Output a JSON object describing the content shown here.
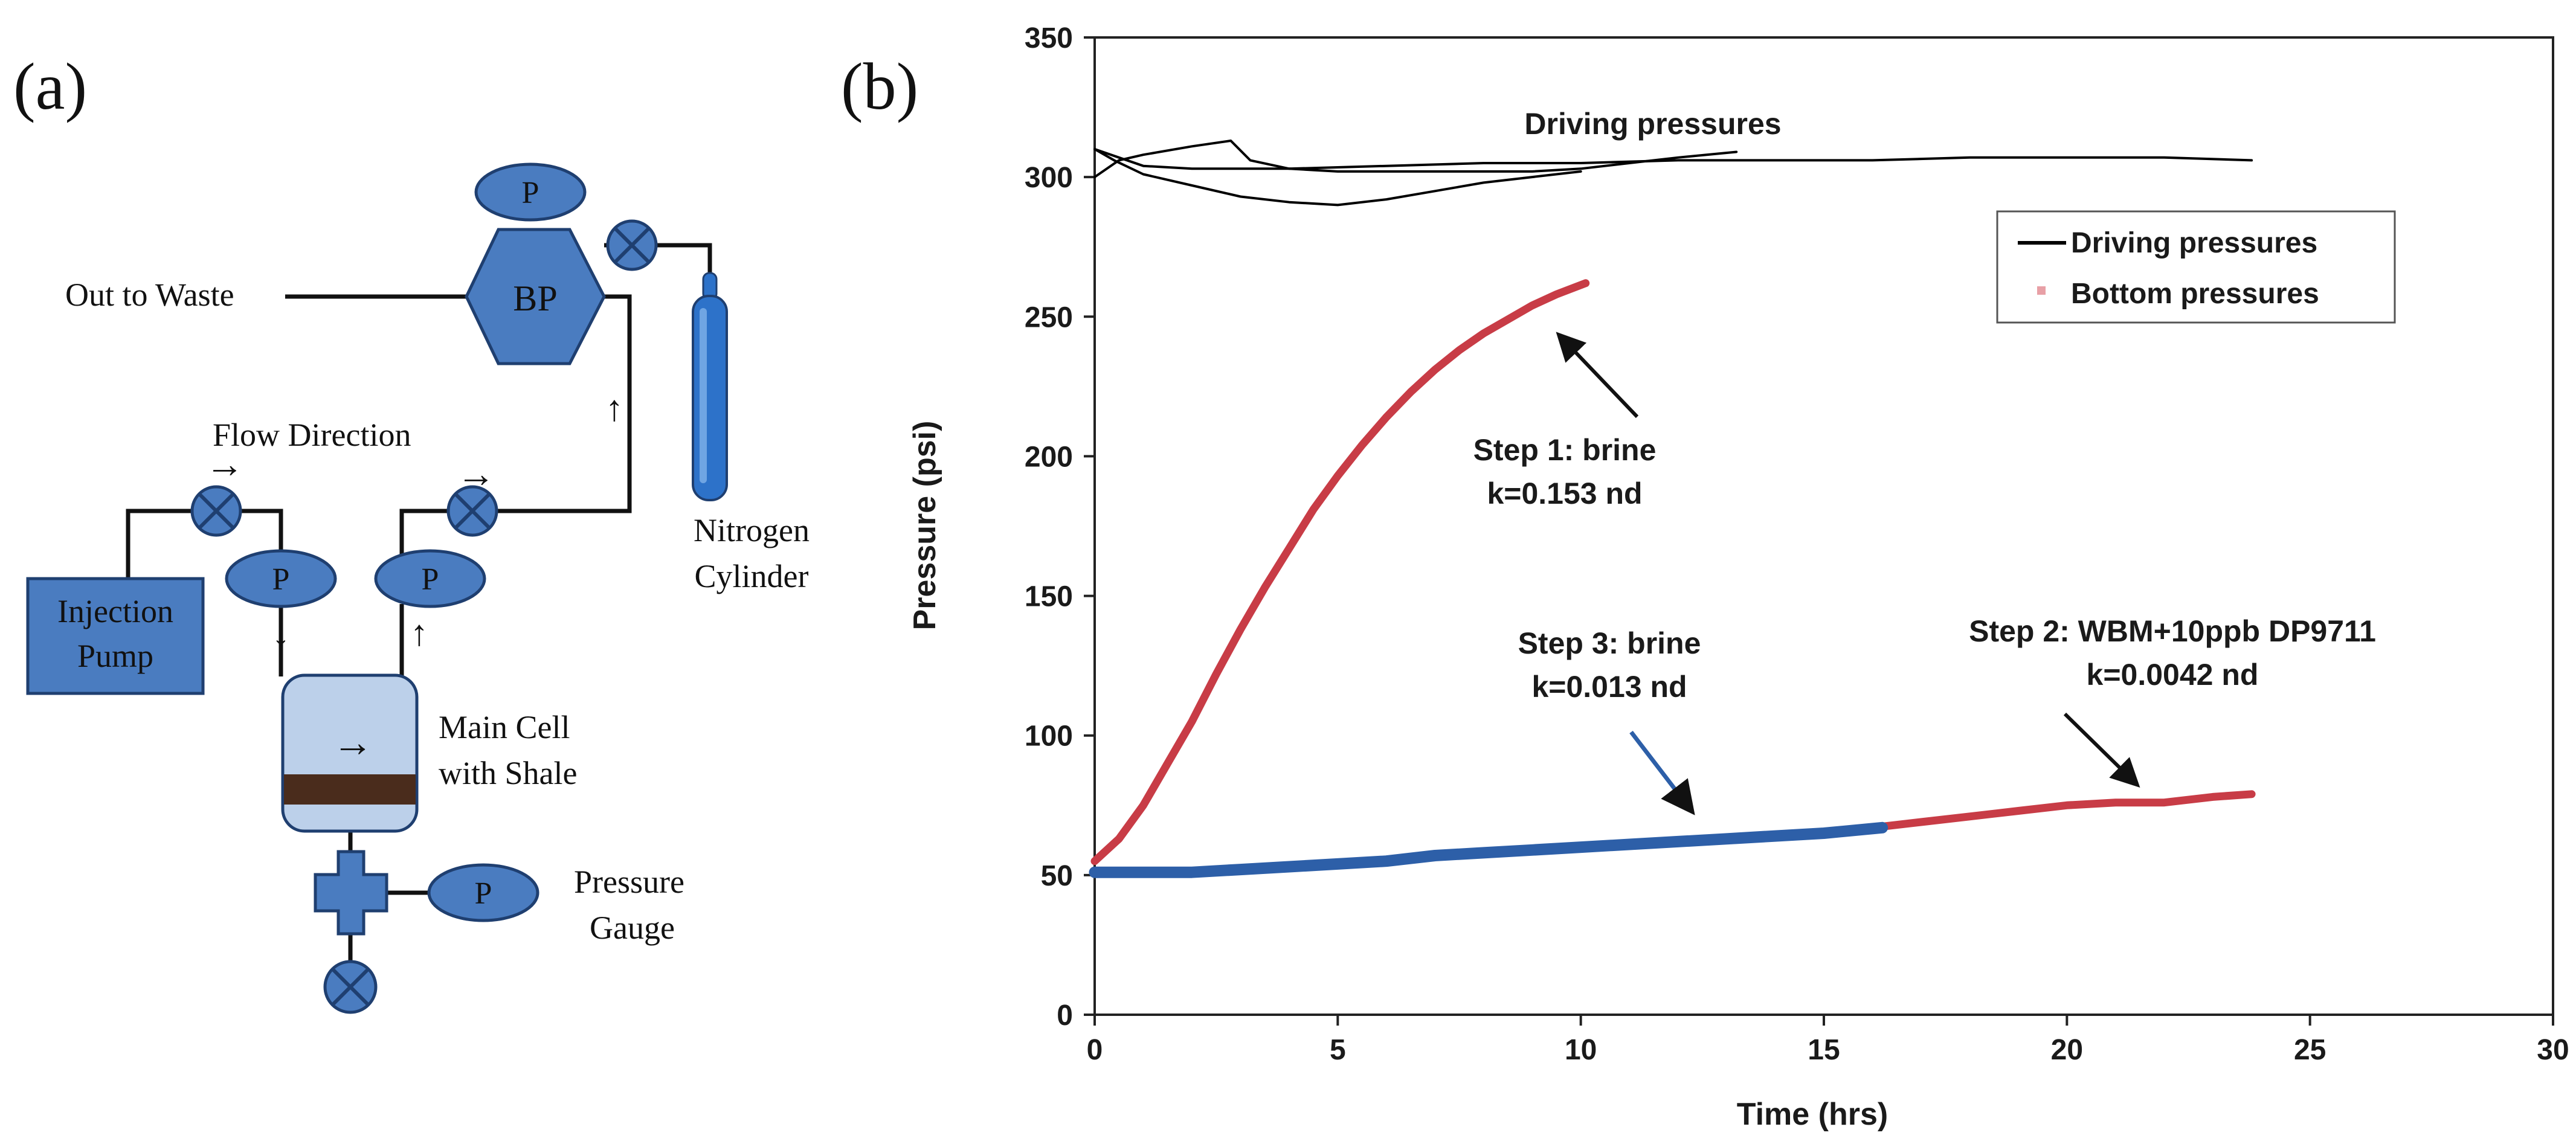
{
  "panel_a": {
    "label": "(a)",
    "out_to_waste": "Out to Waste",
    "back_pressure": "BP",
    "gauge_symbol": "P",
    "flow_direction": "Flow Direction",
    "nitrogen_line1": "Nitrogen",
    "nitrogen_line2": "Cylinder",
    "pump_line1": "Injection",
    "pump_line2": "Pump",
    "cell_line1": "Main Cell",
    "cell_line2": "with Shale",
    "gauge_line1": "Pressure",
    "gauge_line2": "Gauge",
    "arrow_right": "→",
    "arrow_down": "↓",
    "arrow_up": "↑"
  },
  "panel_b_label": "(b)",
  "colors": {
    "driving": "#000000",
    "bottom": "#c83c46",
    "step3": "#2d5fa8",
    "component": "#4a7cc0"
  },
  "chart_data": {
    "type": "line",
    "title": "",
    "xlabel": "Time (hrs)",
    "ylabel": "Pressure (psi)",
    "xlim": [
      0,
      30
    ],
    "ylim": [
      0,
      350
    ],
    "xticks": [
      "0",
      "5",
      "10",
      "15",
      "20",
      "25",
      "30"
    ],
    "yticks": [
      "0",
      "50",
      "100",
      "150",
      "200",
      "250",
      "300",
      "350"
    ],
    "legend": [
      {
        "name": "Driving pressures",
        "style": "line"
      },
      {
        "name": "Bottom pressures",
        "style": "marker"
      }
    ],
    "legend_placement": "upper-right",
    "series": [
      {
        "name": "Driving pressures (step 1)",
        "kind": "driving",
        "x": [
          0,
          0.4,
          1,
          2,
          3,
          4,
          5,
          6,
          7,
          8,
          9,
          10
        ],
        "y": [
          310,
          306,
          301,
          297,
          293,
          291,
          290,
          292,
          295,
          298,
          300,
          302
        ]
      },
      {
        "name": "Driving pressures (step 3)",
        "kind": "driving",
        "x": [
          0,
          0.5,
          1,
          2,
          2.8,
          3.2,
          4,
          5,
          6,
          7,
          8,
          9,
          10,
          11,
          12,
          13.2
        ],
        "y": [
          300,
          306,
          308,
          311,
          313,
          306,
          303,
          302,
          302,
          302,
          302,
          302,
          303,
          305,
          307,
          309
        ]
      },
      {
        "name": "Driving pressures (step 2)",
        "kind": "driving",
        "x": [
          0,
          0.5,
          1,
          2,
          3,
          4,
          6,
          8,
          10,
          12,
          14,
          16,
          18,
          20,
          22,
          23.8
        ],
        "y": [
          310,
          307,
          304,
          303,
          303,
          303,
          304,
          305,
          305,
          306,
          306,
          306,
          307,
          307,
          307,
          306
        ]
      },
      {
        "name": "Bottom pressures (step 1: brine)",
        "kind": "bottom",
        "x": [
          0,
          0.5,
          1,
          1.5,
          2,
          2.5,
          3,
          3.5,
          4,
          4.5,
          5,
          5.5,
          6,
          6.5,
          7,
          7.5,
          8,
          8.5,
          9,
          9.5,
          10.1
        ],
        "y": [
          55,
          63,
          75,
          90,
          105,
          122,
          138,
          153,
          167,
          181,
          193,
          204,
          214,
          223,
          231,
          238,
          244,
          249,
          254,
          258,
          262
        ]
      },
      {
        "name": "Bottom pressures (step 2: WBM+10ppb DP9711)",
        "kind": "bottom",
        "x": [
          16,
          17,
          18,
          19,
          20,
          21,
          22,
          23,
          23.8
        ],
        "y": [
          67,
          69,
          71,
          73,
          75,
          76,
          76,
          78,
          79
        ]
      },
      {
        "name": "Bottom pressures (step 3: brine)",
        "kind": "step3",
        "x": [
          0,
          1,
          2,
          3,
          4,
          5,
          6,
          7,
          8,
          9,
          10,
          11,
          12,
          13,
          14,
          15,
          16.2
        ],
        "y": [
          51,
          51,
          51,
          52,
          53,
          54,
          55,
          57,
          58,
          59,
          60,
          61,
          62,
          63,
          64,
          65,
          67
        ]
      }
    ],
    "annotations": [
      {
        "line1": "Driving pressures",
        "line2": ""
      },
      {
        "line1": "Step 1: brine",
        "line2": "k=0.153 nd",
        "arrow_to": [
          9.3,
          248
        ]
      },
      {
        "line1": "Step 3: brine",
        "line2": "k=0.013 nd",
        "arrow_to": [
          12.5,
          68
        ]
      },
      {
        "line1": "Step 2: WBM+10ppb DP9711",
        "line2": "k=0.0042 nd",
        "arrow_to": [
          21.7,
          78
        ]
      }
    ]
  }
}
